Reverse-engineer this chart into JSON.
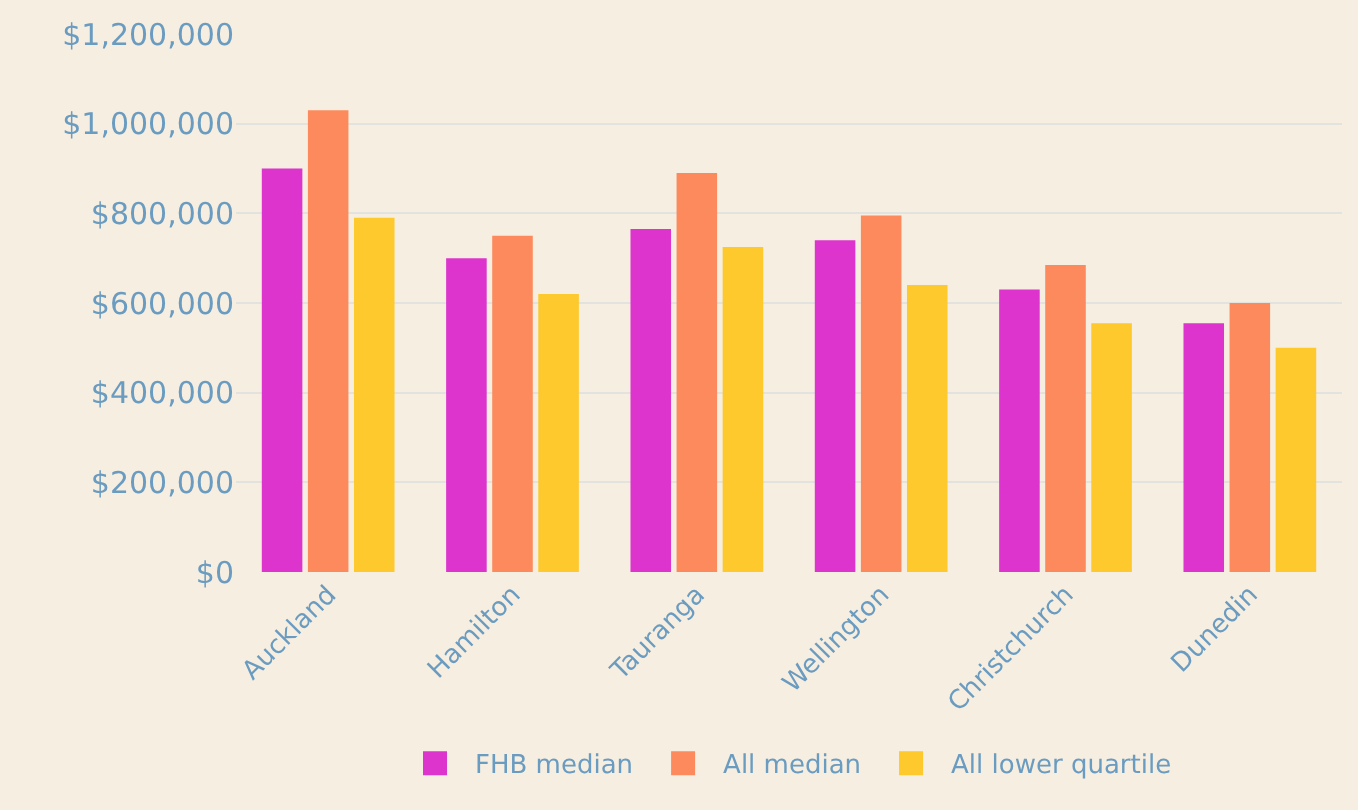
{
  "chart_data": {
    "type": "bar",
    "categories": [
      "Auckland",
      "Hamilton",
      "Tauranga",
      "Wellington",
      "Christchurch",
      "Dunedin"
    ],
    "series": [
      {
        "name": "FHB median",
        "color": "#dc34cc",
        "values": [
          900000,
          700000,
          765000,
          740000,
          630000,
          555000
        ]
      },
      {
        "name": "All median",
        "color": "#fd8a5c",
        "values": [
          1030000,
          750000,
          890000,
          795000,
          685000,
          600000
        ]
      },
      {
        "name": "All lower quartile",
        "color": "#fdc92c",
        "values": [
          790000,
          620000,
          725000,
          640000,
          555000,
          500000
        ]
      }
    ],
    "ylim": [
      0,
      1200000
    ],
    "yticks": [
      {
        "value": 0,
        "label": "$0"
      },
      {
        "value": 200000,
        "label": "$200,000"
      },
      {
        "value": 400000,
        "label": "$400,000"
      },
      {
        "value": 600000,
        "label": "$600,000"
      },
      {
        "value": 800000,
        "label": "$800,000"
      },
      {
        "value": 1000000,
        "label": "$1,000,000"
      },
      {
        "value": 1200000,
        "label": "$1,200,000"
      }
    ],
    "grid": "y",
    "legend": "bottom"
  }
}
